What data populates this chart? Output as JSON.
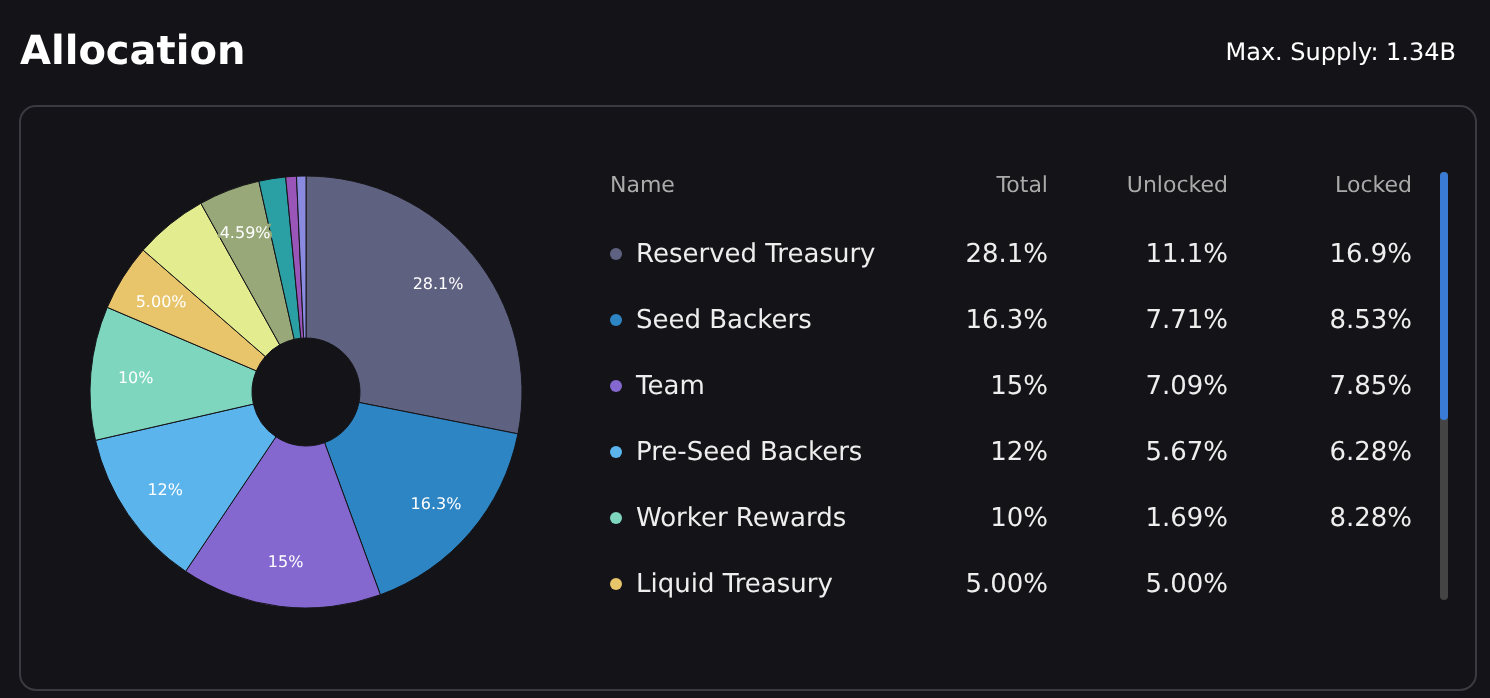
{
  "chart_data": [
    {
      "type": "donut",
      "title": "Allocation",
      "annotations": [
        "Max. Supply: 1.34B"
      ],
      "categories": [
        null,
        null,
        null,
        null,
        null,
        null,
        null,
        null,
        null,
        null,
        null
      ],
      "values": [
        28.1,
        16.3,
        15,
        12,
        10,
        5.0,
        5.5,
        4.59,
        2.0,
        0.8,
        0.7
      ],
      "value_labels": [
        "28.1%",
        "16.3%",
        "15%",
        "12%",
        "10%",
        "5.00%",
        null,
        "4.59%",
        null,
        null,
        null
      ],
      "colors": [
        "#5f6180",
        "#2d85c4",
        "#8468d0",
        "#5bb4ec",
        "#7fd6bf",
        "#e8c46a",
        "#e3ed90",
        "#98a878",
        "#2aa0a5",
        "#9a55b8",
        "#8a8ae0"
      ]
    },
    {
      "type": "other",
      "legend_title": "Name",
      "categories": [
        "Reserved Treasury",
        "Seed Backers",
        "Team",
        "Pre-Seed Backers",
        "Worker Rewards",
        "Liquid Treasury"
      ],
      "colors": [
        "#5f6180",
        "#2d85c4",
        "#8468d0",
        "#5bb4ec",
        "#7fd6bf",
        "#e8c46a"
      ],
      "series": [
        {
          "name": "Total",
          "values": [
            28.1,
            16.3,
            15,
            12,
            10,
            5.0
          ],
          "value_labels": [
            "28.1%",
            "16.3%",
            "15%",
            "12%",
            "10%",
            "5.00%"
          ]
        },
        {
          "name": "Unlocked",
          "values": [
            11.1,
            7.71,
            7.09,
            5.67,
            1.69,
            5.0
          ],
          "value_labels": [
            "11.1%",
            "7.71%",
            "7.09%",
            "5.67%",
            "1.69%",
            "5.00%"
          ]
        },
        {
          "name": "Locked",
          "values": [
            16.9,
            8.53,
            7.85,
            6.28,
            8.28,
            null
          ],
          "value_labels": [
            "16.9%",
            "8.53%",
            "7.85%",
            "6.28%",
            "8.28%",
            null
          ]
        }
      ]
    }
  ]
}
